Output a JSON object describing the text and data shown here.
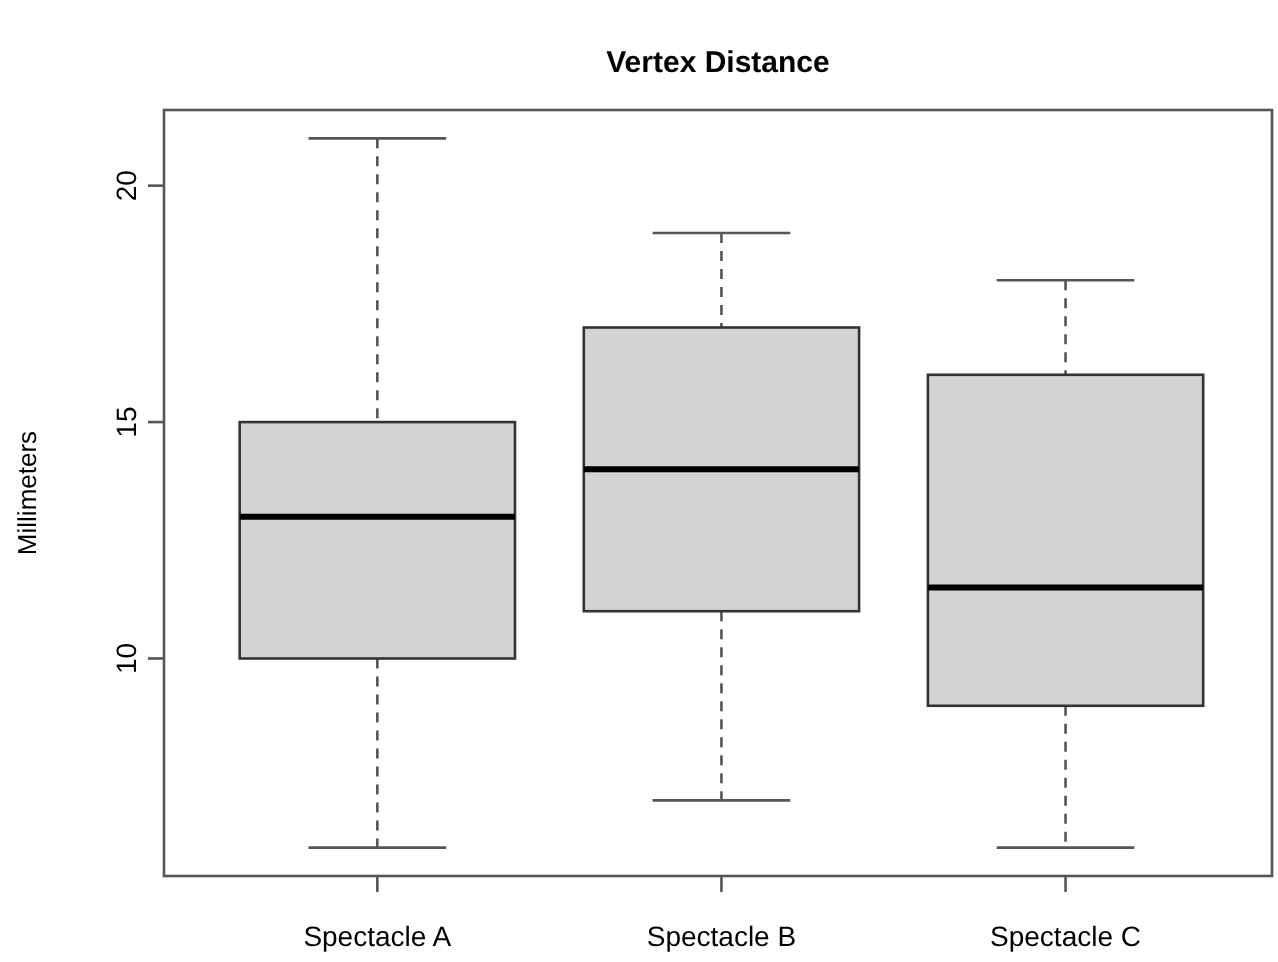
{
  "chart_data": {
    "type": "box",
    "title": "Vertex Distance",
    "ylabel": "Millimeters",
    "categories": [
      "Spectacle A",
      "Spectacle B",
      "Spectacle C"
    ],
    "boxes": [
      {
        "low": 6,
        "q1": 10,
        "median": 13,
        "q3": 15,
        "high": 21
      },
      {
        "low": 7,
        "q1": 11,
        "median": 14,
        "q3": 17,
        "high": 19
      },
      {
        "low": 6,
        "q1": 9,
        "median": 11.5,
        "q3": 16,
        "high": 18
      }
    ],
    "color": "#d3d3d3",
    "ylim": [
      5.4,
      21.6
    ],
    "yticks": [
      10,
      15,
      20
    ],
    "grid": false
  }
}
